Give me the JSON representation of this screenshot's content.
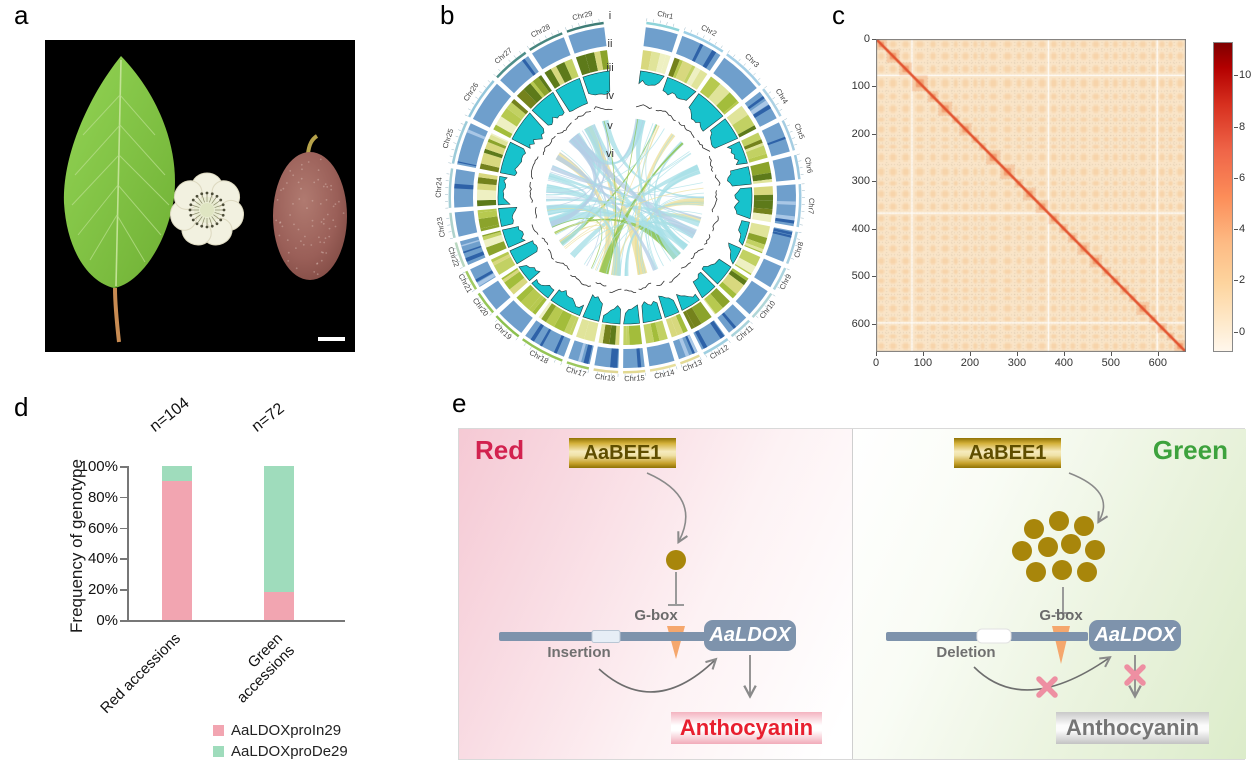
{
  "panels": {
    "a": {
      "label": "a",
      "items": [
        "leaf",
        "flower",
        "red-fleshed-fruit"
      ],
      "background": "#000000",
      "has_scale_bar": true
    },
    "b": {
      "label": "b",
      "track_labels": [
        "i",
        "ii",
        "iii",
        "iv",
        "v",
        "vi"
      ],
      "chromosomes": [
        "Chr1",
        "Chr2",
        "Chr3",
        "Chr4",
        "Chr5",
        "Chr6",
        "Chr7",
        "Chr8",
        "Chr9",
        "Chr10",
        "Chr11",
        "Chr12",
        "Chr13",
        "Chr14",
        "Chr15",
        "Chr16",
        "Chr17",
        "Chr18",
        "Chr19",
        "Chr20",
        "Chr21",
        "Chr22",
        "Chr23",
        "Chr24",
        "Chr25",
        "Chr26",
        "Chr27",
        "Chr28",
        "Chr29"
      ]
    },
    "c": {
      "label": "c"
    },
    "d": {
      "label": "d"
    },
    "e": {
      "label": "e",
      "left": {
        "title": "Red",
        "title_color": "#d2224f",
        "tf": "AaBEE1",
        "site": "G-box",
        "variant": "Insertion",
        "gene": "AaLDOX",
        "product": "Anthocyanin"
      },
      "right": {
        "title": "Green",
        "title_color": "#3da23d",
        "tf": "AaBEE1",
        "site": "G-box",
        "variant": "Deletion",
        "gene": "AaLDOX",
        "product": "Anthocyanin"
      }
    }
  },
  "chart_data": [
    {
      "panel": "b",
      "type": "circos",
      "categories": [
        "Chr1",
        "Chr2",
        "Chr3",
        "Chr4",
        "Chr5",
        "Chr6",
        "Chr7",
        "Chr8",
        "Chr9",
        "Chr10",
        "Chr11",
        "Chr12",
        "Chr13",
        "Chr14",
        "Chr15",
        "Chr16",
        "Chr17",
        "Chr18",
        "Chr19",
        "Chr20",
        "Chr21",
        "Chr22",
        "Chr23",
        "Chr24",
        "Chr25",
        "Chr26",
        "Chr27",
        "Chr28",
        "Chr29"
      ],
      "tracks": [
        {
          "id": "i",
          "kind": "ideogram-ruler"
        },
        {
          "id": "ii",
          "kind": "density-band",
          "base_color": "#6f9fcc",
          "stripe_color": "#2e62a8"
        },
        {
          "id": "iii",
          "kind": "heatmap",
          "palette": [
            "#74821c",
            "#8ba32b",
            "#a3bd3b",
            "#c2d163",
            "#e0e49a",
            "#eef0c2",
            "#5d7a1a",
            "#b7c94f",
            "#d8d87e"
          ]
        },
        {
          "id": "iv",
          "kind": "histogram",
          "fill": "#17c2cc",
          "stroke": "#1d3d3d"
        },
        {
          "id": "v",
          "kind": "line",
          "stroke": "#2e2e2e"
        },
        {
          "id": "vi",
          "kind": "links",
          "colors": [
            "#a7dfe7",
            "#b5cde6",
            "#ecdf9b",
            "#8ac043"
          ]
        }
      ]
    },
    {
      "panel": "c",
      "type": "heatmap",
      "pattern": "Hi-C style contact matrix: light orange background, faint checker blocks, strong red diagonal of chromosome blocks",
      "x_range": [
        0,
        660
      ],
      "y_range": [
        0,
        660
      ],
      "x_ticks": [
        0,
        100,
        200,
        300,
        400,
        500,
        600
      ],
      "y_ticks": [
        0,
        100,
        200,
        300,
        400,
        500,
        600
      ],
      "colorbar": {
        "ticks": [
          0,
          2,
          4,
          6,
          8,
          10
        ],
        "min": -0.8,
        "max": 11.3
      },
      "base_color": "#fae5c8",
      "diagonal_color": "#e2512d"
    },
    {
      "panel": "d",
      "type": "bar",
      "stacked": true,
      "ylabel": "Frequency of genotype",
      "categories": [
        "Red accessions",
        "Green accessions"
      ],
      "n_labels": [
        "n=104",
        "n=72"
      ],
      "series": [
        {
          "name": "AaLDOXproIn29",
          "color": "#F2A5B1",
          "values": [
            90,
            18
          ]
        },
        {
          "name": "AaLDOXproDe29",
          "color": "#9FDCBC",
          "values": [
            10,
            82
          ]
        }
      ],
      "y_tick_values": [
        0,
        20,
        40,
        60,
        80,
        100
      ],
      "y_ticks": [
        "0%",
        "20%",
        "40%",
        "60%",
        "80%",
        "100%"
      ],
      "ylim": [
        0,
        100
      ],
      "legend_position": "bottom"
    }
  ]
}
